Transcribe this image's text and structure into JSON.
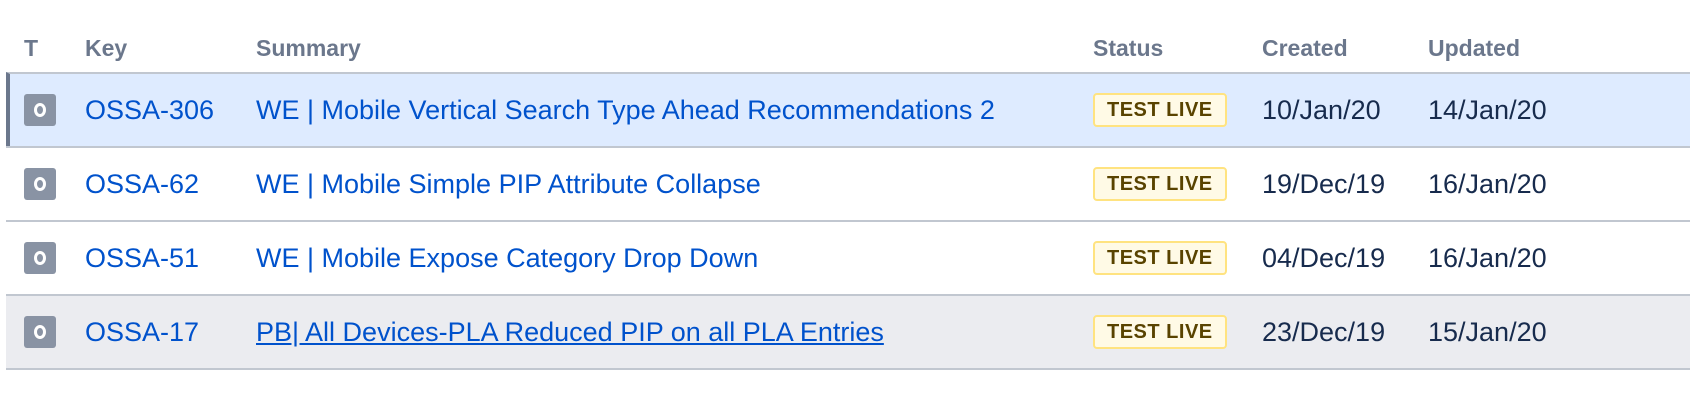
{
  "columns": {
    "type": "T",
    "key": "Key",
    "summary": "Summary",
    "status": "Status",
    "created": "Created",
    "updated": "Updated"
  },
  "rows": [
    {
      "type_icon": "issue-type-icon",
      "key": "OSSA-306",
      "summary": "WE | Mobile Vertical Search Type Ahead Recommendations 2",
      "status": "TEST LIVE",
      "created": "10/Jan/20",
      "updated": "14/Jan/20",
      "selected": true
    },
    {
      "type_icon": "issue-type-icon",
      "key": "OSSA-62",
      "summary": "WE | Mobile Simple PIP Attribute Collapse",
      "status": "TEST LIVE",
      "created": "19/Dec/19",
      "updated": "16/Jan/20"
    },
    {
      "type_icon": "issue-type-icon",
      "key": "OSSA-51",
      "summary": "WE | Mobile Expose Category Drop Down",
      "status": "TEST LIVE",
      "created": "04/Dec/19",
      "updated": "16/Jan/20"
    },
    {
      "type_icon": "issue-type-icon",
      "key": "OSSA-17",
      "summary": "PB| All Devices-PLA Reduced PIP on all PLA Entries",
      "status": "TEST LIVE",
      "created": "23/Dec/19",
      "updated": "15/Jan/20",
      "hovered": true
    }
  ],
  "colors": {
    "link": "#0052cc",
    "selected_row": "#deebff",
    "hover_row": "#ebecf0",
    "lozenge_bg": "#fffae6",
    "lozenge_border": "#ffe380",
    "lozenge_text": "#594300",
    "header_text": "#6b778c"
  }
}
